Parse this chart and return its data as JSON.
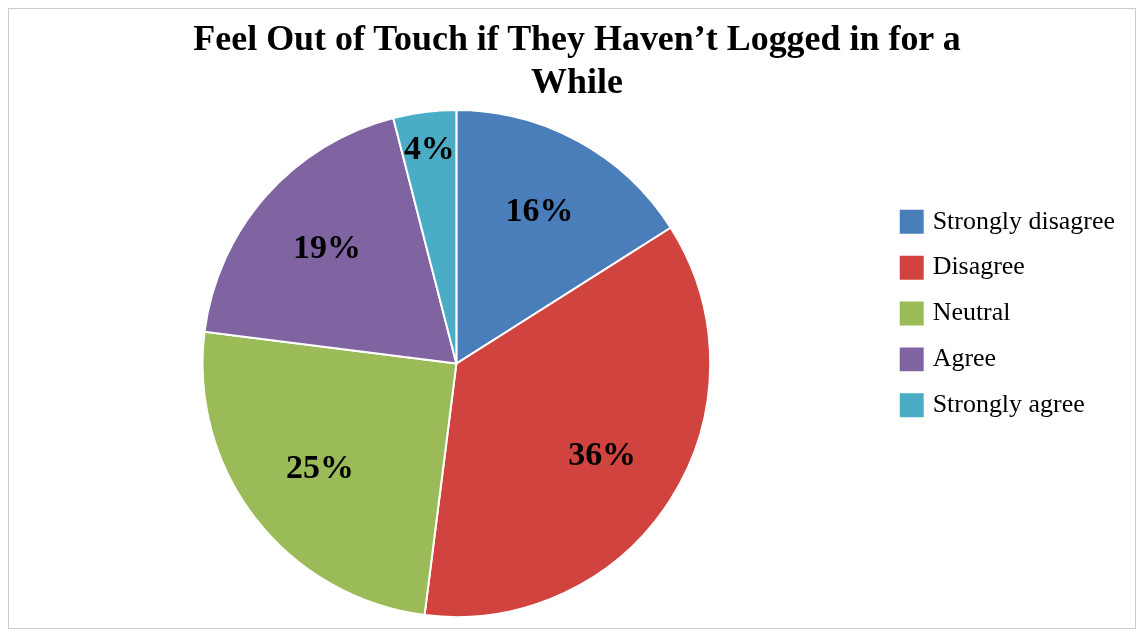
{
  "chart_data": {
    "type": "pie",
    "title": "Feel Out of Touch if They Haven’t Logged in for a While",
    "categories": [
      "Strongly disagree",
      "Disagree",
      "Neutral",
      "Agree",
      "Strongly agree"
    ],
    "values": [
      16,
      36,
      25,
      19,
      4
    ],
    "colors": [
      "#4a7ebb",
      "#d0433f",
      "#9bbb59",
      "#8064a2",
      "#4bacc6"
    ],
    "value_labels": [
      "16%",
      "36%",
      "25%",
      "19%",
      "4%"
    ],
    "legend": "right"
  }
}
